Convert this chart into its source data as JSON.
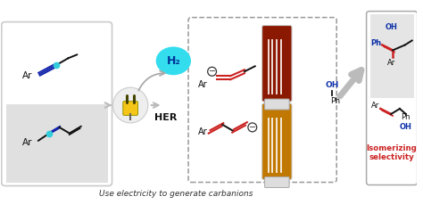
{
  "bg_color": "#ffffff",
  "left_box_color": "#ffffff",
  "left_box_border": "#cccccc",
  "left_box_lower_bg": "#e0e0e0",
  "dashed_box_border": "#888888",
  "h2_bubble_color": "#33ddee",
  "plug_color": "#f5c518",
  "arrow_color": "#bbbbbb",
  "isomerizing_color": "#cc2222",
  "blue_color": "#1133aa",
  "red_color": "#cc2222",
  "teal_color": "#33ccdd",
  "black": "#111111",
  "text_caption": "Use electricity to generate carbanions",
  "text_HER": "HER",
  "text_H2": "H₂",
  "text_isomerizing": "Isomerizing\nselectivity",
  "figsize": [
    4.74,
    2.48
  ],
  "dpi": 100
}
